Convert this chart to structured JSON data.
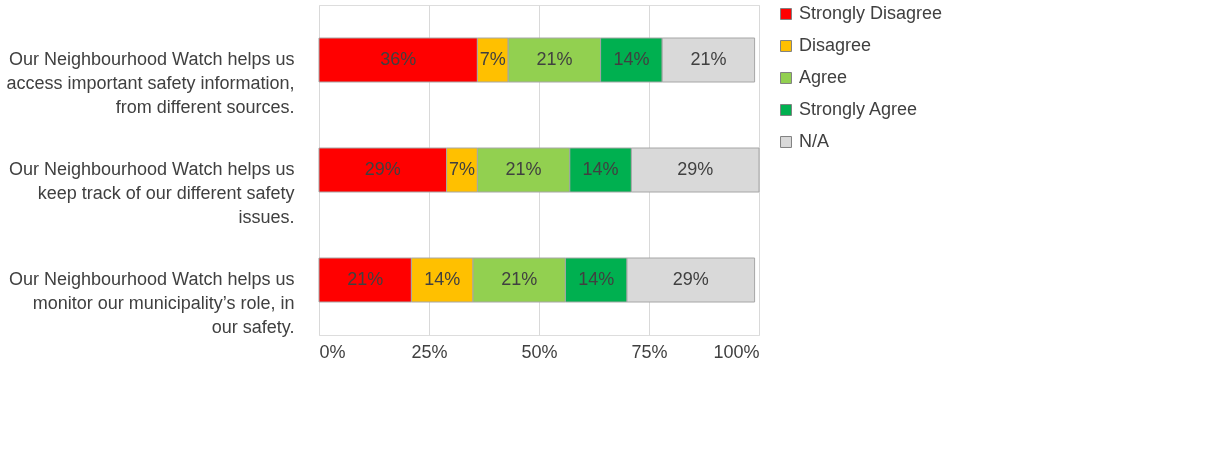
{
  "chart_data": {
    "type": "bar",
    "orientation": "horizontal",
    "stacked": true,
    "categories": [
      "Our Neighbourhood Watch helps us access important safety information, from different sources.",
      "Our Neighbourhood Watch helps us keep track of our different safety issues.",
      "Our Neighbourhood Watch helps us monitor our municipality’s role, in our safety."
    ],
    "series": [
      {
        "name": "Strongly Disagree",
        "color": "#ff0000",
        "values": [
          36,
          29,
          21
        ],
        "value_labels": [
          "36%",
          "29%",
          "21%"
        ]
      },
      {
        "name": "Disagree",
        "color": "#ffc000",
        "values": [
          7,
          7,
          14
        ],
        "value_labels": [
          "7%",
          "7%",
          "14%"
        ]
      },
      {
        "name": "Agree",
        "color": "#92d050",
        "values": [
          21,
          21,
          21
        ],
        "value_labels": [
          "21%",
          "21%",
          "21%"
        ]
      },
      {
        "name": "Strongly Agree",
        "color": "#00b050",
        "values": [
          14,
          14,
          14
        ],
        "value_labels": [
          "14%",
          "14%",
          "14%"
        ]
      },
      {
        "name": "N/A",
        "color": "#d9d9d9",
        "values": [
          21,
          29,
          29
        ],
        "value_labels": [
          "21%",
          "29%",
          "29%"
        ]
      }
    ],
    "xlim": [
      0,
      100
    ],
    "xticks": [
      {
        "value": 0,
        "label": "0%"
      },
      {
        "value": 25,
        "label": "25%"
      },
      {
        "value": 50,
        "label": "50%"
      },
      {
        "value": 75,
        "label": "75%"
      },
      {
        "value": 100,
        "label": "100%"
      }
    ],
    "grid": "x",
    "legend": "right"
  }
}
